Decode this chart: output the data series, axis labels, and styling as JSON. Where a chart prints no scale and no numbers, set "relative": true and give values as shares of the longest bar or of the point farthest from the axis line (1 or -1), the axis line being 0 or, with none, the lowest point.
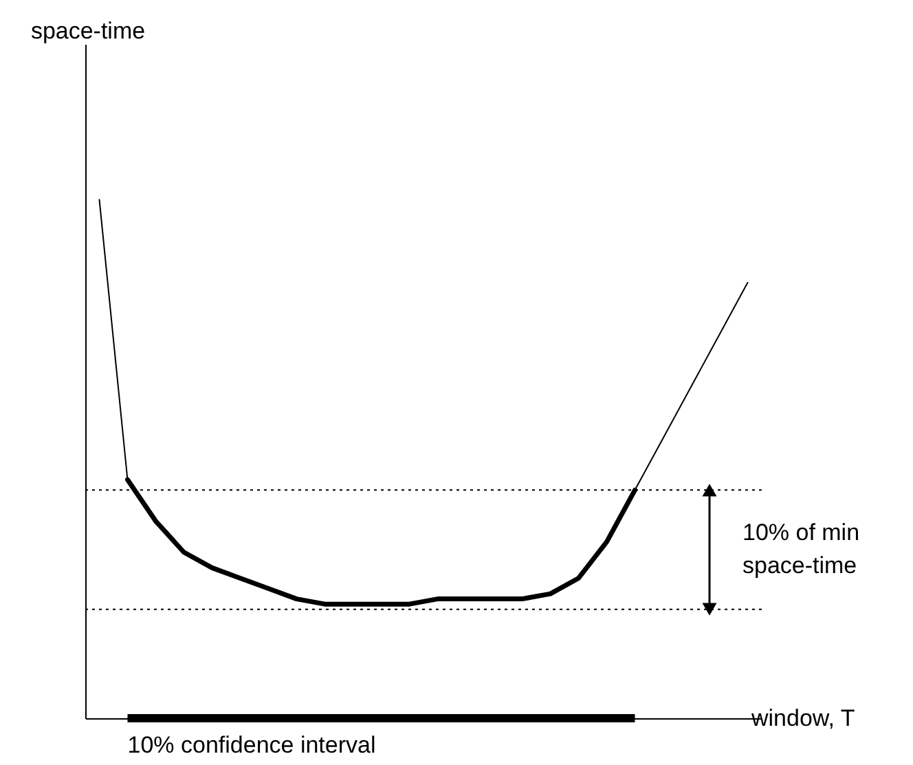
{
  "chart_data": {
    "type": "line",
    "relative": true,
    "xlabel": "window, T",
    "categories": [
      null,
      null,
      null,
      null,
      null,
      null,
      null,
      null,
      null,
      null,
      null,
      null,
      null,
      null,
      null,
      null,
      null,
      null,
      null,
      null,
      null,
      null,
      null,
      null
    ],
    "series": [
      {
        "color": "#000000",
        "values": [
          1.0,
          0.46,
          0.38,
          0.32,
          0.29,
          0.27,
          0.25,
          0.23,
          0.22,
          0.22,
          0.22,
          0.22,
          0.23,
          0.23,
          0.23,
          0.23,
          0.24,
          0.27,
          0.34,
          0.44,
          0.54,
          0.64,
          0.74,
          0.84
        ]
      },
      {
        "color": "#000000",
        "values": [
          null,
          0.46,
          0.38,
          0.32,
          0.29,
          0.27,
          0.25,
          0.23,
          0.22,
          0.22,
          0.22,
          0.22,
          0.23,
          0.23,
          0.23,
          0.23,
          0.24,
          0.27,
          0.34,
          0.44,
          null,
          null,
          null,
          null
        ]
      }
    ],
    "ref_lines": [
      {
        "axis": "y",
        "value": 0.44,
        "line_style": "dotted"
      },
      {
        "axis": "y",
        "value": 0.21,
        "line_style": "dotted"
      }
    ],
    "annotations": [
      "10% confidence interval",
      "10% of min space-time",
      "space-time"
    ]
  }
}
